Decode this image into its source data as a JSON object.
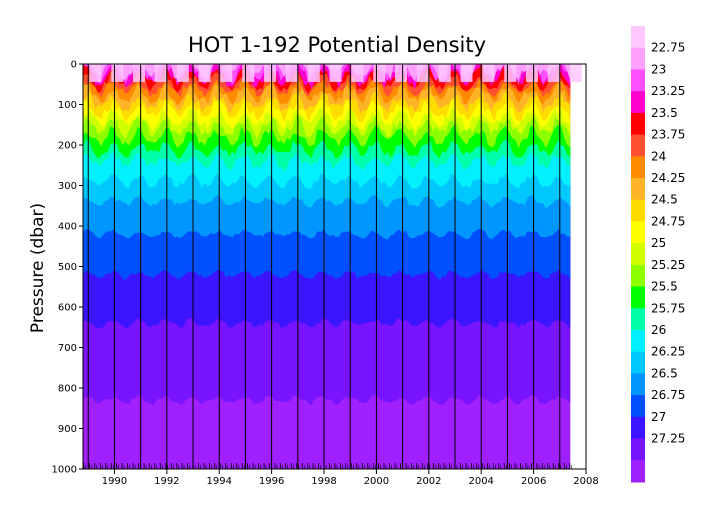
{
  "chart_data": {
    "type": "heatmap",
    "title": "HOT 1-192 Potential Density",
    "ylabel": "Pressure (dbar)",
    "xlabel": "",
    "xlim": [
      1988.8,
      2008
    ],
    "ylim": [
      1000,
      0
    ],
    "x_ticks": [
      "1990",
      "1992",
      "1994",
      "1996",
      "1998",
      "2000",
      "2002",
      "2004",
      "2006",
      "2008"
    ],
    "y_ticks": [
      "0",
      "100",
      "200",
      "300",
      "400",
      "500",
      "600",
      "700",
      "800",
      "900",
      "1000"
    ],
    "colorbar": {
      "labels": [
        "22.75",
        "23",
        "23.25",
        "23.5",
        "23.75",
        "24",
        "24.25",
        "24.5",
        "24.75",
        "25",
        "25.25",
        "25.5",
        "25.75",
        "26",
        "26.25",
        "26.5",
        "26.75",
        "27",
        "27.25"
      ],
      "colors": [
        "#ffc8ff",
        "#ffa0ff",
        "#ff50ff",
        "#ff00cc",
        "#ff0000",
        "#ff5030",
        "#ff8c00",
        "#ffb428",
        "#ffdc00",
        "#ffff00",
        "#d2ff00",
        "#8cff00",
        "#00ff00",
        "#00ffaa",
        "#00f0ff",
        "#00c8ff",
        "#0096ff",
        "#0050ff",
        "#3c14ff",
        "#7814ff",
        "#a020ff"
      ]
    },
    "isopycnal_depths": {
      "levels": [
        "22.75",
        "23",
        "23.25",
        "23.5",
        "23.75",
        "24",
        "24.25",
        "24.5",
        "24.75",
        "25",
        "25.25",
        "25.5",
        "25.75",
        "26",
        "26.25",
        "26.5",
        "26.75",
        "27",
        "27.25"
      ],
      "mean_pressure": [
        10,
        20,
        32,
        45,
        60,
        75,
        95,
        115,
        135,
        155,
        180,
        210,
        240,
        290,
        340,
        420,
        520,
        640,
        830
      ],
      "seasonal_amplitude": [
        20,
        20,
        20,
        18,
        15,
        18,
        18,
        18,
        18,
        18,
        18,
        15,
        15,
        12,
        10,
        8,
        8,
        8,
        8
      ]
    },
    "cruise_years": [
      1988.83,
      1989.04,
      1989.25,
      1989.46,
      1989.67,
      1989.88,
      1990.08,
      1990.29,
      1990.5,
      1990.71,
      1990.92,
      1991.13,
      1991.33,
      1991.54,
      1991.75,
      1991.96,
      1992.17,
      1992.38,
      1992.58,
      1992.79,
      1993.0,
      1993.21,
      1993.42,
      1993.63,
      1993.83,
      1994.04,
      1994.25,
      1994.46,
      1994.67,
      1994.88,
      1995.08,
      1995.29,
      1995.5,
      1995.71,
      1995.92,
      1996.13,
      1996.33,
      1996.54,
      1996.75,
      1996.96,
      1997.17,
      1997.38,
      1997.58,
      1997.79,
      1998.0,
      1998.21,
      1998.42,
      1998.63,
      1998.83,
      1999.04,
      1999.25,
      1999.46,
      1999.67,
      1999.88,
      2000.08,
      2000.29,
      2000.5,
      2000.71,
      2000.92,
      2001.13,
      2001.33,
      2001.54,
      2001.75,
      2001.96,
      2002.17,
      2002.38,
      2002.58,
      2002.79,
      2003.0,
      2003.21,
      2003.42,
      2003.63,
      2003.83,
      2004.04,
      2004.25,
      2004.46,
      2004.67,
      2004.88,
      2005.08,
      2005.29,
      2005.5,
      2005.71,
      2005.92,
      2006.13,
      2006.33,
      2006.54,
      2006.75,
      2006.96,
      2007.17,
      2007.38
    ],
    "end_year": 2007.4
  }
}
